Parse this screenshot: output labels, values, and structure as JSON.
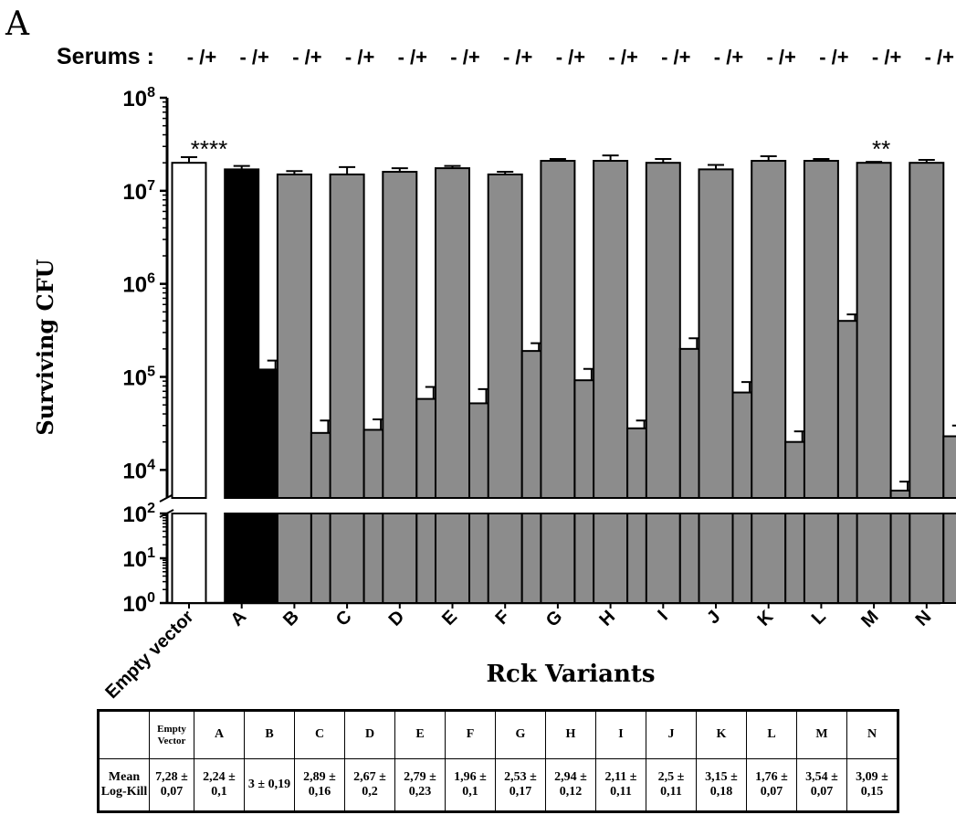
{
  "panel_label": "A",
  "serums_label": "Serums :",
  "serums_marker": "- /+",
  "chart_data": {
    "type": "bar",
    "ylabel": "Surviving CFU",
    "xlabel": "Rck Variants",
    "yscale": "log",
    "ylim": [
      1,
      100000000
    ],
    "axis_break": [
      100,
      5000
    ],
    "y_ticks": [
      {
        "base": "10",
        "exp": "0",
        "value": 1
      },
      {
        "base": "10",
        "exp": "1",
        "value": 10
      },
      {
        "base": "10",
        "exp": "2",
        "value": 100
      },
      {
        "base": "10",
        "exp": "4",
        "value": 10000
      },
      {
        "base": "10",
        "exp": "5",
        "value": 100000
      },
      {
        "base": "10",
        "exp": "6",
        "value": 1000000
      },
      {
        "base": "10",
        "exp": "7",
        "value": 10000000
      },
      {
        "base": "10",
        "exp": "8",
        "value": 100000000
      }
    ],
    "categories": [
      "Empty vector",
      "A",
      "B",
      "C",
      "D",
      "E",
      "F",
      "G",
      "H",
      "I",
      "J",
      "K",
      "L",
      "M",
      "N"
    ],
    "series": [
      {
        "condition": "-",
        "values": [
          20000000,
          17000000,
          15000000,
          15000000,
          16000000,
          17500000,
          15000000,
          21000000,
          21000000,
          20000000,
          17000000,
          21000000,
          21000000,
          20000000,
          20000000
        ],
        "errors": [
          3000000,
          1500000,
          1300000,
          3000000,
          1500000,
          1000000,
          1000000,
          1000000,
          3000000,
          2000000,
          2000000,
          2500000,
          1000000,
          500000,
          1500000
        ]
      },
      {
        "condition": "+",
        "values": [
          null,
          120000,
          25000,
          27000,
          58000,
          52000,
          190000,
          92000,
          28000,
          200000,
          68000,
          20000,
          400000,
          6000,
          23000
        ],
        "errors": [
          null,
          30000,
          9000,
          8000,
          20000,
          22000,
          40000,
          30000,
          6000,
          60000,
          20000,
          6000,
          70000,
          1500,
          7000
        ]
      }
    ],
    "colors": {
      "empty_vector": "#ffffff",
      "rck_a": "#000000",
      "variants": "#8c8c8c",
      "outline": "#000000"
    },
    "annotations": [
      {
        "category": "Empty vector",
        "text": "****"
      },
      {
        "category": "M",
        "text": "**"
      }
    ]
  },
  "table": {
    "row_label": "Mean Log-Kill",
    "columns": [
      "Empty Vector",
      "A",
      "B",
      "C",
      "D",
      "E",
      "F",
      "G",
      "H",
      "I",
      "J",
      "K",
      "L",
      "M",
      "N"
    ],
    "values": [
      "7,28 ± 0,07",
      "2,24 ± 0,1",
      "3 ± 0,19",
      "2,89 ± 0,16",
      "2,67 ± 0,2",
      "2,79 ± 0,23",
      "1,96 ± 0,1",
      "2,53 ± 0,17",
      "2,94 ± 0,12",
      "2,11 ± 0,11",
      "2,5 ± 0,11",
      "3,15 ± 0,18",
      "1,76 ± 0,07",
      "3,54 ± 0,07",
      "3,09 ± 0,15"
    ]
  }
}
